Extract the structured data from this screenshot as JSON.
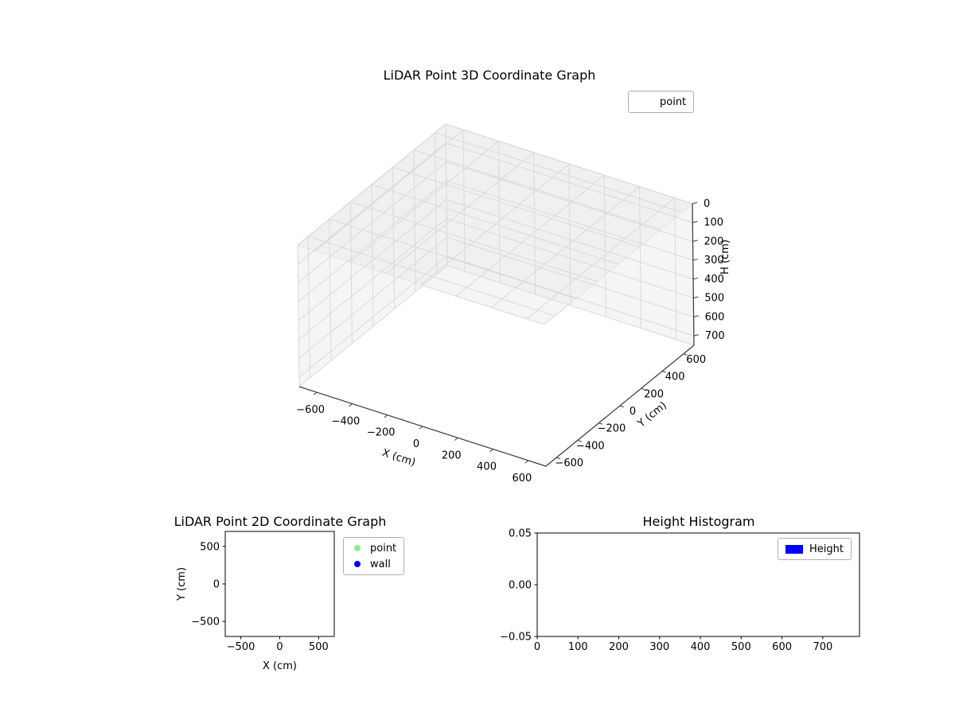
{
  "figure": {
    "background": "#ffffff"
  },
  "chart_data": [
    {
      "id": "plot3d",
      "type": "scatter",
      "projection": "3d",
      "title": "LiDAR Point 3D Coordinate Graph",
      "xlabel": "X (cm)",
      "ylabel": "Y (cm)",
      "zlabel": "H (cm)",
      "xlim": [
        -700,
        700
      ],
      "ylim": [
        -700,
        700
      ],
      "zlim": [
        0,
        750
      ],
      "z_axis_inverted": true,
      "xticks": [
        -600,
        -400,
        -200,
        0,
        200,
        400,
        600
      ],
      "xtick_labels": [
        "−600",
        "−400",
        "−200",
        "0",
        "200",
        "400",
        "600"
      ],
      "yticks": [
        -600,
        -400,
        -200,
        0,
        200,
        400,
        600
      ],
      "ytick_labels": [
        "−600",
        "−400",
        "−200",
        "0",
        "200",
        "400",
        "600"
      ],
      "zticks": [
        0,
        100,
        200,
        300,
        400,
        500,
        600,
        700
      ],
      "ztick_labels": [
        "0",
        "100",
        "200",
        "300",
        "400",
        "500",
        "600",
        "700"
      ],
      "legend": [
        {
          "label": "point",
          "marker": "none"
        }
      ],
      "series": [
        {
          "name": "point",
          "points": []
        }
      ],
      "grid": true,
      "grid_color": "#d9d9d9",
      "pane_color": "#ececec",
      "axis_color": "#3a3a3a"
    },
    {
      "id": "plot2d",
      "type": "scatter",
      "title": "LiDAR Point 2D Coordinate Graph",
      "xlabel": "X (cm)",
      "ylabel": "Y (cm)",
      "xlim": [
        -700,
        700
      ],
      "ylim": [
        -700,
        700
      ],
      "xticks": [
        -500,
        0,
        500
      ],
      "xtick_labels": [
        "−500",
        "0",
        "500"
      ],
      "yticks": [
        -500,
        0,
        500
      ],
      "ytick_labels": [
        "−500",
        "0",
        "500"
      ],
      "legend": [
        {
          "label": "point",
          "color": "#90ee90"
        },
        {
          "label": "wall",
          "color": "#0000ff"
        }
      ],
      "series": [
        {
          "name": "point",
          "color": "#90ee90",
          "points": []
        },
        {
          "name": "wall",
          "color": "#0000ff",
          "points": []
        }
      ],
      "grid": false
    },
    {
      "id": "histogram",
      "type": "bar",
      "title": "Height Histogram",
      "xlabel": "",
      "ylabel": "",
      "xlim": [
        0,
        790
      ],
      "ylim": [
        -0.05,
        0.05
      ],
      "xticks": [
        0,
        100,
        200,
        300,
        400,
        500,
        600,
        700
      ],
      "xtick_labels": [
        "0",
        "100",
        "200",
        "300",
        "400",
        "500",
        "600",
        "700"
      ],
      "yticks": [
        -0.05,
        0,
        0.05
      ],
      "ytick_labels": [
        "−0.05",
        "0.00",
        "0.05"
      ],
      "legend": [
        {
          "label": "Height",
          "color": "#0000ff"
        }
      ],
      "values": [],
      "grid": false
    }
  ]
}
